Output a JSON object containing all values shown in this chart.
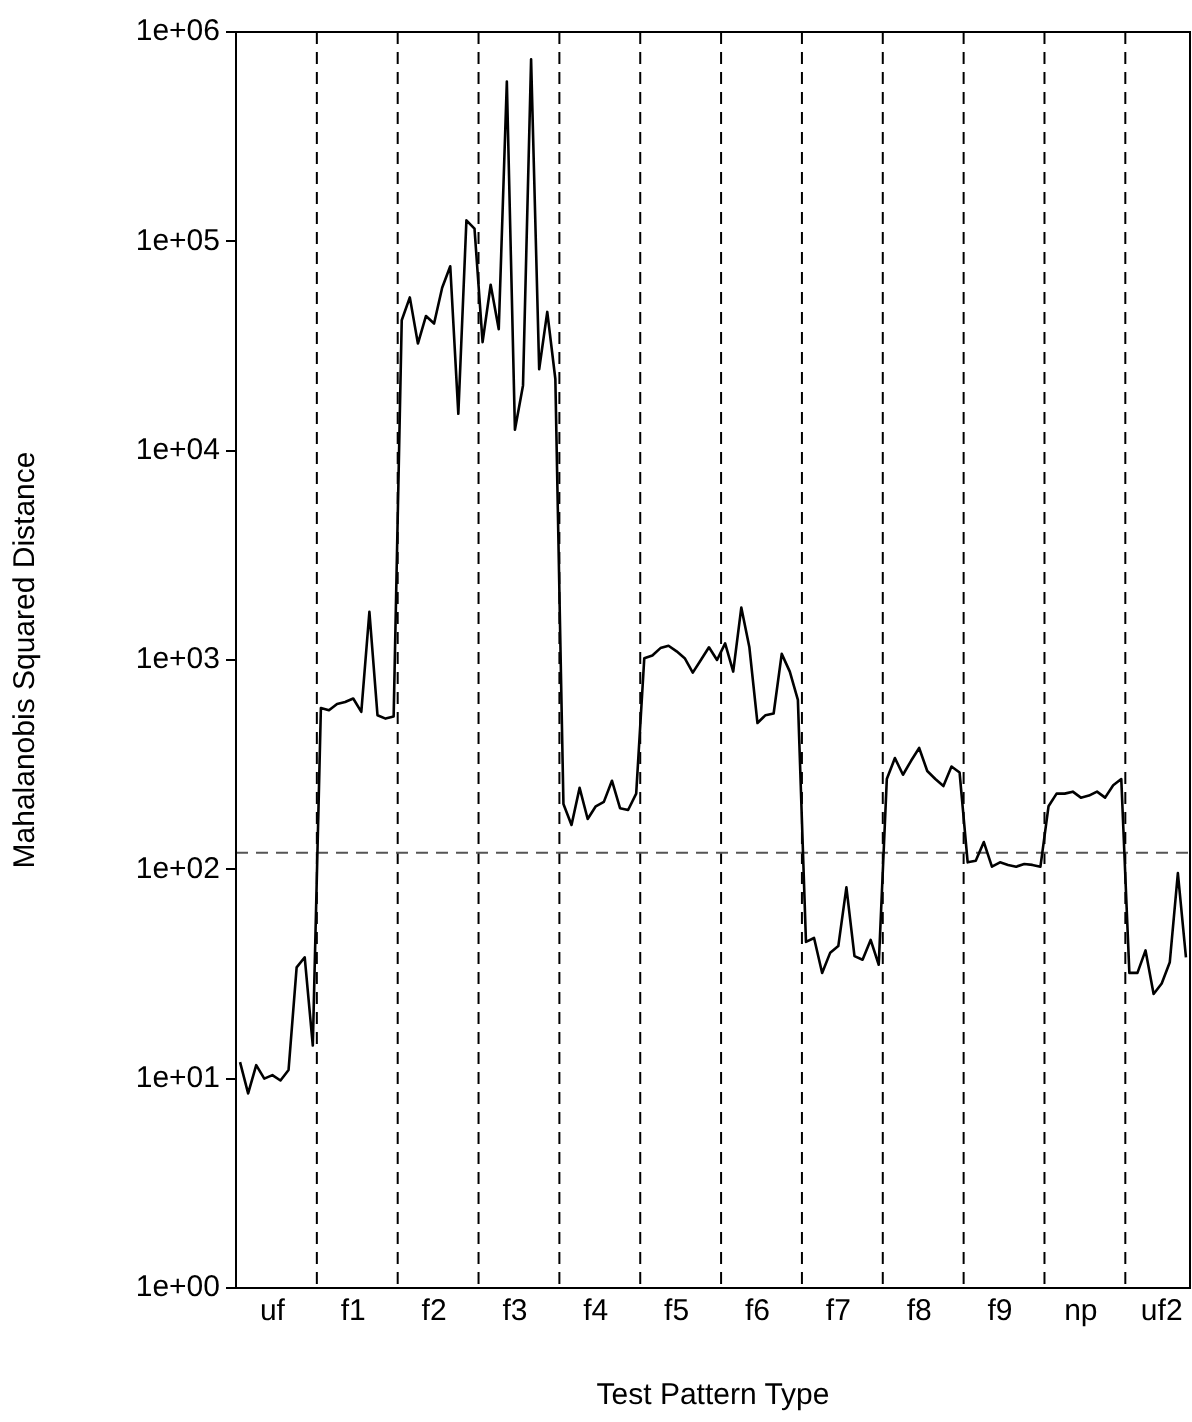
{
  "chart_data": {
    "type": "line",
    "xlabel": "Test Pattern Type",
    "ylabel": "Mahalanobis Squared Distance",
    "log": "y",
    "grid": false,
    "legend": false,
    "marker": "none",
    "line_style": "solid",
    "categories": [
      null,
      null,
      null,
      null,
      "uf",
      null,
      null,
      null,
      null,
      null,
      null,
      null,
      null,
      null,
      "f1",
      null,
      null,
      null,
      null,
      null,
      null,
      null,
      null,
      null,
      "f2",
      null,
      null,
      null,
      null,
      null,
      null,
      null,
      null,
      null,
      "f3",
      null,
      null,
      null,
      null,
      null,
      null,
      null,
      null,
      null,
      "f4",
      null,
      null,
      null,
      null,
      null,
      null,
      null,
      null,
      null,
      "f5",
      null,
      null,
      null,
      null,
      null,
      null,
      null,
      null,
      null,
      "f6",
      null,
      null,
      null,
      null,
      null,
      null,
      null,
      null,
      null,
      "f7",
      null,
      null,
      null,
      null,
      null,
      null,
      null,
      null,
      null,
      "f8",
      null,
      null,
      null,
      null,
      null,
      null,
      null,
      null,
      null,
      "f9",
      null,
      null,
      null,
      null,
      null,
      null,
      null,
      null,
      null,
      "np",
      null,
      null,
      null,
      null,
      null,
      null,
      null,
      null,
      null,
      "uf2",
      null,
      null,
      null
    ],
    "ylim": [
      1,
      1000000
    ],
    "yticks": [
      {
        "value": 1,
        "label": "1e+00"
      },
      {
        "value": 10,
        "label": "1e+01"
      },
      {
        "value": 100,
        "label": "1e+02"
      },
      {
        "value": 1000,
        "label": "1e+03"
      },
      {
        "value": 10000,
        "label": "1e+04"
      },
      {
        "value": 100000,
        "label": "1e+05"
      },
      {
        "value": 1000000,
        "label": "1e+06"
      }
    ],
    "ref_lines": [
      {
        "axis": "y",
        "value": 120,
        "label": null,
        "color": "#555555",
        "line_style": "dashed"
      }
    ],
    "series": [
      {
        "color": "#000000",
        "values": [
          12,
          8.5,
          11.6,
          10,
          10.4,
          9.8,
          11,
          34,
          38,
          14.4,
          590,
          575,
          617,
          630,
          655,
          565,
          1700,
          545,
          525,
          537,
          42000,
          54000,
          32500,
          44000,
          40500,
          60000,
          76000,
          15000,
          126000,
          115000,
          33000,
          62000,
          38000,
          580000,
          12600,
          20500,
          740000,
          24500,
          46000,
          22000,
          205,
          163,
          245,
          174,
          200,
          210,
          265,
          196,
          192,
          230,
          1020,
          1050,
          1140,
          1170,
          1100,
          1020,
          870,
          1000,
          1150,
          1000,
          1200,
          880,
          1780,
          1150,
          500,
          545,
          555,
          1070,
          880,
          645,
          45,
          47,
          32,
          40,
          43,
          82,
          38.5,
          37,
          46,
          35,
          270,
          340,
          283,
          330,
          380,
          295,
          270,
          250,
          310,
          290,
          108,
          110,
          135,
          103,
          108,
          105,
          103,
          106,
          105,
          103,
          200,
          230,
          230,
          235,
          220,
          225,
          235,
          220,
          252,
          270,
          32,
          32,
          41,
          25.4,
          28.5,
          36,
          96,
          38
        ]
      }
    ]
  }
}
